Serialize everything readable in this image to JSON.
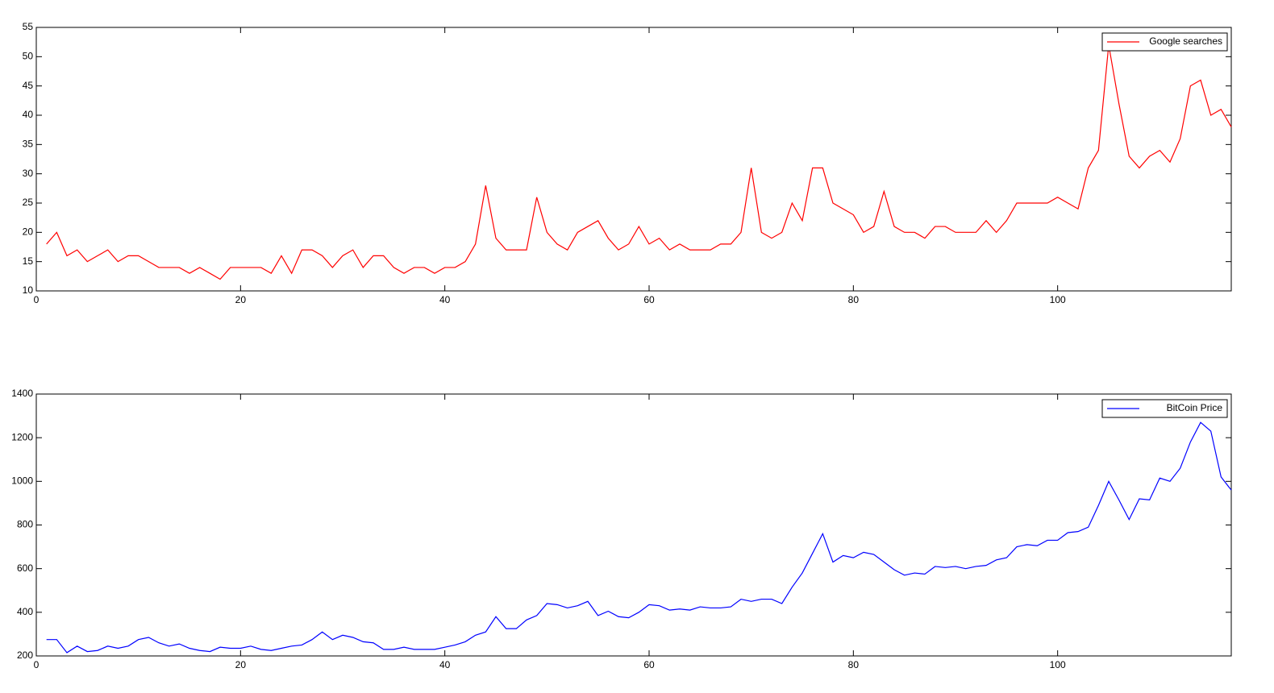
{
  "chart_data": [
    {
      "type": "line",
      "legend": "upper right",
      "xlim": [
        0,
        117
      ],
      "ylim": [
        10,
        55
      ],
      "xticks": [
        0,
        20,
        40,
        60,
        80,
        100
      ],
      "yticks": [
        10,
        15,
        20,
        25,
        30,
        35,
        40,
        45,
        50,
        55
      ],
      "x": [
        1,
        2,
        3,
        4,
        5,
        6,
        7,
        8,
        9,
        10,
        11,
        12,
        13,
        14,
        15,
        16,
        17,
        18,
        19,
        20,
        21,
        22,
        23,
        24,
        25,
        26,
        27,
        28,
        29,
        30,
        31,
        32,
        33,
        34,
        35,
        36,
        37,
        38,
        39,
        40,
        41,
        42,
        43,
        44,
        45,
        46,
        47,
        48,
        49,
        50,
        51,
        52,
        53,
        54,
        55,
        56,
        57,
        58,
        59,
        60,
        61,
        62,
        63,
        64,
        65,
        66,
        67,
        68,
        69,
        70,
        71,
        72,
        73,
        74,
        75,
        76,
        77,
        78,
        79,
        80,
        81,
        82,
        83,
        84,
        85,
        86,
        87,
        88,
        89,
        90,
        91,
        92,
        93,
        94,
        95,
        96,
        97,
        98,
        99,
        100,
        101,
        102,
        103,
        104,
        105,
        106,
        107,
        108,
        109,
        110,
        111,
        112,
        113,
        114,
        115,
        116,
        117
      ],
      "series": [
        {
          "name": "Google searches",
          "color": "#ff0000",
          "values": [
            18,
            20,
            16,
            17,
            15,
            16,
            17,
            15,
            16,
            16,
            15,
            14,
            14,
            14,
            13,
            14,
            13,
            12,
            14,
            14,
            14,
            14,
            13,
            16,
            13,
            17,
            17,
            16,
            14,
            16,
            17,
            14,
            16,
            16,
            14,
            13,
            14,
            14,
            13,
            14,
            14,
            15,
            18,
            28,
            19,
            17,
            17,
            17,
            26,
            20,
            18,
            17,
            20,
            21,
            22,
            19,
            17,
            18,
            21,
            18,
            19,
            17,
            18,
            17,
            17,
            17,
            18,
            18,
            20,
            31,
            20,
            19,
            20,
            25,
            22,
            31,
            31,
            25,
            24,
            23,
            20,
            21,
            27,
            21,
            20,
            20,
            19,
            21,
            21,
            20,
            20,
            20,
            22,
            20,
            22,
            25,
            25,
            25,
            25,
            26,
            25,
            24,
            31,
            34,
            52,
            42,
            33,
            31,
            33,
            34,
            32,
            36,
            45,
            46,
            40,
            41,
            38
          ]
        }
      ]
    },
    {
      "type": "line",
      "legend": "upper right",
      "xlim": [
        0,
        117
      ],
      "ylim": [
        200,
        1400
      ],
      "xticks": [
        0,
        20,
        40,
        60,
        80,
        100
      ],
      "yticks": [
        200,
        400,
        600,
        800,
        1000,
        1200,
        1400
      ],
      "x": [
        1,
        2,
        3,
        4,
        5,
        6,
        7,
        8,
        9,
        10,
        11,
        12,
        13,
        14,
        15,
        16,
        17,
        18,
        19,
        20,
        21,
        22,
        23,
        24,
        25,
        26,
        27,
        28,
        29,
        30,
        31,
        32,
        33,
        34,
        35,
        36,
        37,
        38,
        39,
        40,
        41,
        42,
        43,
        44,
        45,
        46,
        47,
        48,
        49,
        50,
        51,
        52,
        53,
        54,
        55,
        56,
        57,
        58,
        59,
        60,
        61,
        62,
        63,
        64,
        65,
        66,
        67,
        68,
        69,
        70,
        71,
        72,
        73,
        74,
        75,
        76,
        77,
        78,
        79,
        80,
        81,
        82,
        83,
        84,
        85,
        86,
        87,
        88,
        89,
        90,
        91,
        92,
        93,
        94,
        95,
        96,
        97,
        98,
        99,
        100,
        101,
        102,
        103,
        104,
        105,
        106,
        107,
        108,
        109,
        110,
        111,
        112,
        113,
        114,
        115,
        116,
        117
      ],
      "series": [
        {
          "name": "BitCoin Price",
          "color": "#0000ff",
          "values": [
            275,
            275,
            215,
            245,
            220,
            225,
            245,
            235,
            245,
            275,
            285,
            260,
            245,
            255,
            235,
            225,
            220,
            240,
            235,
            235,
            245,
            230,
            225,
            235,
            245,
            250,
            275,
            310,
            275,
            295,
            285,
            265,
            260,
            230,
            230,
            240,
            230,
            230,
            230,
            240,
            250,
            265,
            295,
            310,
            380,
            325,
            325,
            365,
            385,
            440,
            435,
            420,
            430,
            450,
            385,
            405,
            380,
            375,
            400,
            435,
            430,
            410,
            415,
            410,
            425,
            420,
            420,
            425,
            460,
            450,
            460,
            460,
            440,
            515,
            580,
            670,
            760,
            630,
            660,
            650,
            675,
            665,
            630,
            595,
            570,
            580,
            575,
            610,
            605,
            610,
            600,
            610,
            615,
            640,
            650,
            700,
            710,
            705,
            730,
            730,
            765,
            770,
            790,
            890,
            1000,
            915,
            825,
            920,
            915,
            1015,
            1000,
            1060,
            1180,
            1270,
            1230,
            1020,
            960
          ]
        }
      ]
    }
  ]
}
